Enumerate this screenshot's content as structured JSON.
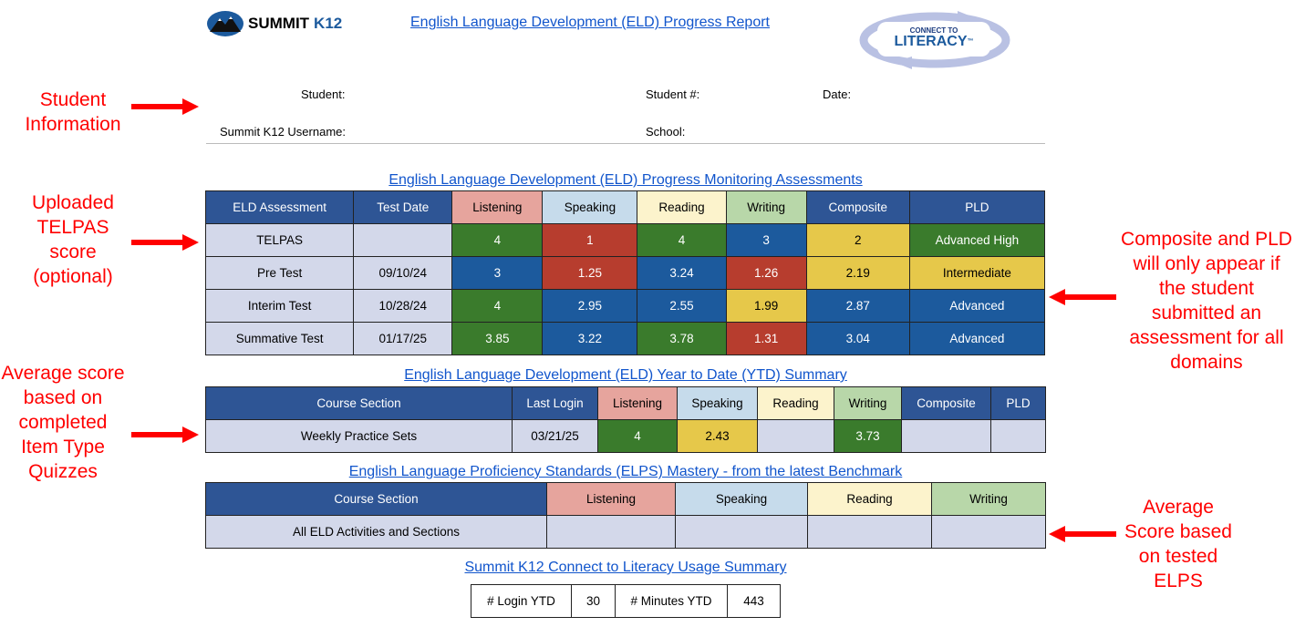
{
  "header": {
    "logo_text_1": "SUMMIT",
    "logo_text_2": "K12",
    "title": "English Language Development (ELD) Progress Report",
    "badge_top": "CONNECT TO",
    "badge_main": "LITERACY",
    "badge_tm": "™"
  },
  "student_info": {
    "student_label": "Student:",
    "student_num_label": "Student #:",
    "date_label": "Date:",
    "username_label": "Summit K12 Username:",
    "school_label": "School:"
  },
  "annotations": {
    "student_info": "Student Information",
    "telpas": "Uploaded TELPAS score (optional)",
    "average": "Average score based on completed Item Type Quizzes",
    "composite": "Composite and PLD will only appear if the student submitted an assessment for all domains",
    "elps": "Average Score based on tested ELPS"
  },
  "assessments": {
    "title": "English Language Development (ELD) Progress Monitoring Assessments",
    "headers": [
      "ELD Assessment",
      "Test Date",
      "Listening",
      "Speaking",
      "Reading",
      "Writing",
      "Composite",
      "PLD"
    ],
    "rows": [
      {
        "name": "TELPAS",
        "date": "",
        "listening": "4",
        "speaking": "1",
        "reading": "4",
        "writing": "3",
        "composite": "2",
        "pld": "Advanced High"
      },
      {
        "name": "Pre Test",
        "date": "09/10/24",
        "listening": "3",
        "speaking": "1.25",
        "reading": "3.24",
        "writing": "1.26",
        "composite": "2.19",
        "pld": "Intermediate"
      },
      {
        "name": "Interim Test",
        "date": "10/28/24",
        "listening": "4",
        "speaking": "2.95",
        "reading": "2.55",
        "writing": "1.99",
        "composite": "2.87",
        "pld": "Advanced"
      },
      {
        "name": "Summative Test",
        "date": "01/17/25",
        "listening": "3.85",
        "speaking": "3.22",
        "reading": "3.78",
        "writing": "1.31",
        "composite": "3.04",
        "pld": "Advanced"
      }
    ]
  },
  "ytd": {
    "title": "English Language Development (ELD) Year to Date (YTD) Summary",
    "headers": [
      "Course Section",
      "Last Login",
      "Listening",
      "Speaking",
      "Reading",
      "Writing",
      "Composite",
      "PLD"
    ],
    "row": {
      "section": "Weekly Practice Sets",
      "last_login": "03/21/25",
      "listening": "4",
      "speaking": "2.43",
      "reading": "",
      "writing": "3.73",
      "composite": "",
      "pld": ""
    }
  },
  "elps": {
    "title": "English Language Proficiency Standards (ELPS) Mastery - from the latest Benchmark",
    "headers": [
      "Course Section",
      "Listening",
      "Speaking",
      "Reading",
      "Writing"
    ],
    "row": {
      "section": "All ELD Activities and Sections",
      "listening": "",
      "speaking": "",
      "reading": "",
      "writing": ""
    }
  },
  "usage": {
    "title": "Summit K12 Connect to Literacy Usage Summary",
    "login_label": "# Login YTD",
    "login_value": "30",
    "minutes_label": "# Minutes YTD",
    "minutes_value": "443"
  }
}
